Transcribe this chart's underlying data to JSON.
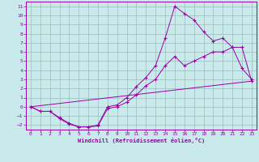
{
  "xlabel": "Windchill (Refroidissement éolien,°C)",
  "bg_color": "#c8eaea",
  "line_color": "#9900aa",
  "grid_color": "#a0b8b8",
  "xlim": [
    -0.5,
    23.5
  ],
  "ylim": [
    -2.5,
    11.5
  ],
  "xticks": [
    0,
    1,
    2,
    3,
    4,
    5,
    6,
    7,
    8,
    9,
    10,
    11,
    12,
    13,
    14,
    15,
    16,
    17,
    18,
    19,
    20,
    21,
    22,
    23
  ],
  "yticks": [
    -2,
    -1,
    0,
    1,
    2,
    3,
    4,
    5,
    6,
    7,
    8,
    9,
    10,
    11
  ],
  "line1_x": [
    0,
    1,
    2,
    3,
    4,
    5,
    6,
    7,
    8,
    9,
    10,
    11,
    12,
    13,
    14,
    15,
    16,
    17,
    18,
    19,
    20,
    21,
    22,
    23
  ],
  "line1_y": [
    0.0,
    -0.5,
    -0.5,
    -1.3,
    -1.9,
    -2.2,
    -2.2,
    -2.1,
    -0.2,
    0.0,
    0.5,
    1.3,
    2.3,
    3.0,
    4.5,
    5.5,
    4.5,
    5.0,
    5.5,
    6.0,
    6.0,
    6.5,
    6.5,
    2.8
  ],
  "line2_x": [
    0,
    1,
    2,
    3,
    4,
    5,
    6,
    7,
    8,
    9,
    10,
    11,
    12,
    13,
    14,
    15,
    16,
    17,
    18,
    19,
    20,
    21,
    22,
    23
  ],
  "line2_y": [
    0.0,
    -0.5,
    -0.5,
    -1.2,
    -1.8,
    -2.2,
    -2.2,
    -2.0,
    0.0,
    0.2,
    1.0,
    2.2,
    3.2,
    4.5,
    7.5,
    11.0,
    10.2,
    9.5,
    8.2,
    7.2,
    7.5,
    6.5,
    4.2,
    3.0
  ],
  "line3_x": [
    0,
    23
  ],
  "line3_y": [
    0.0,
    2.8
  ]
}
